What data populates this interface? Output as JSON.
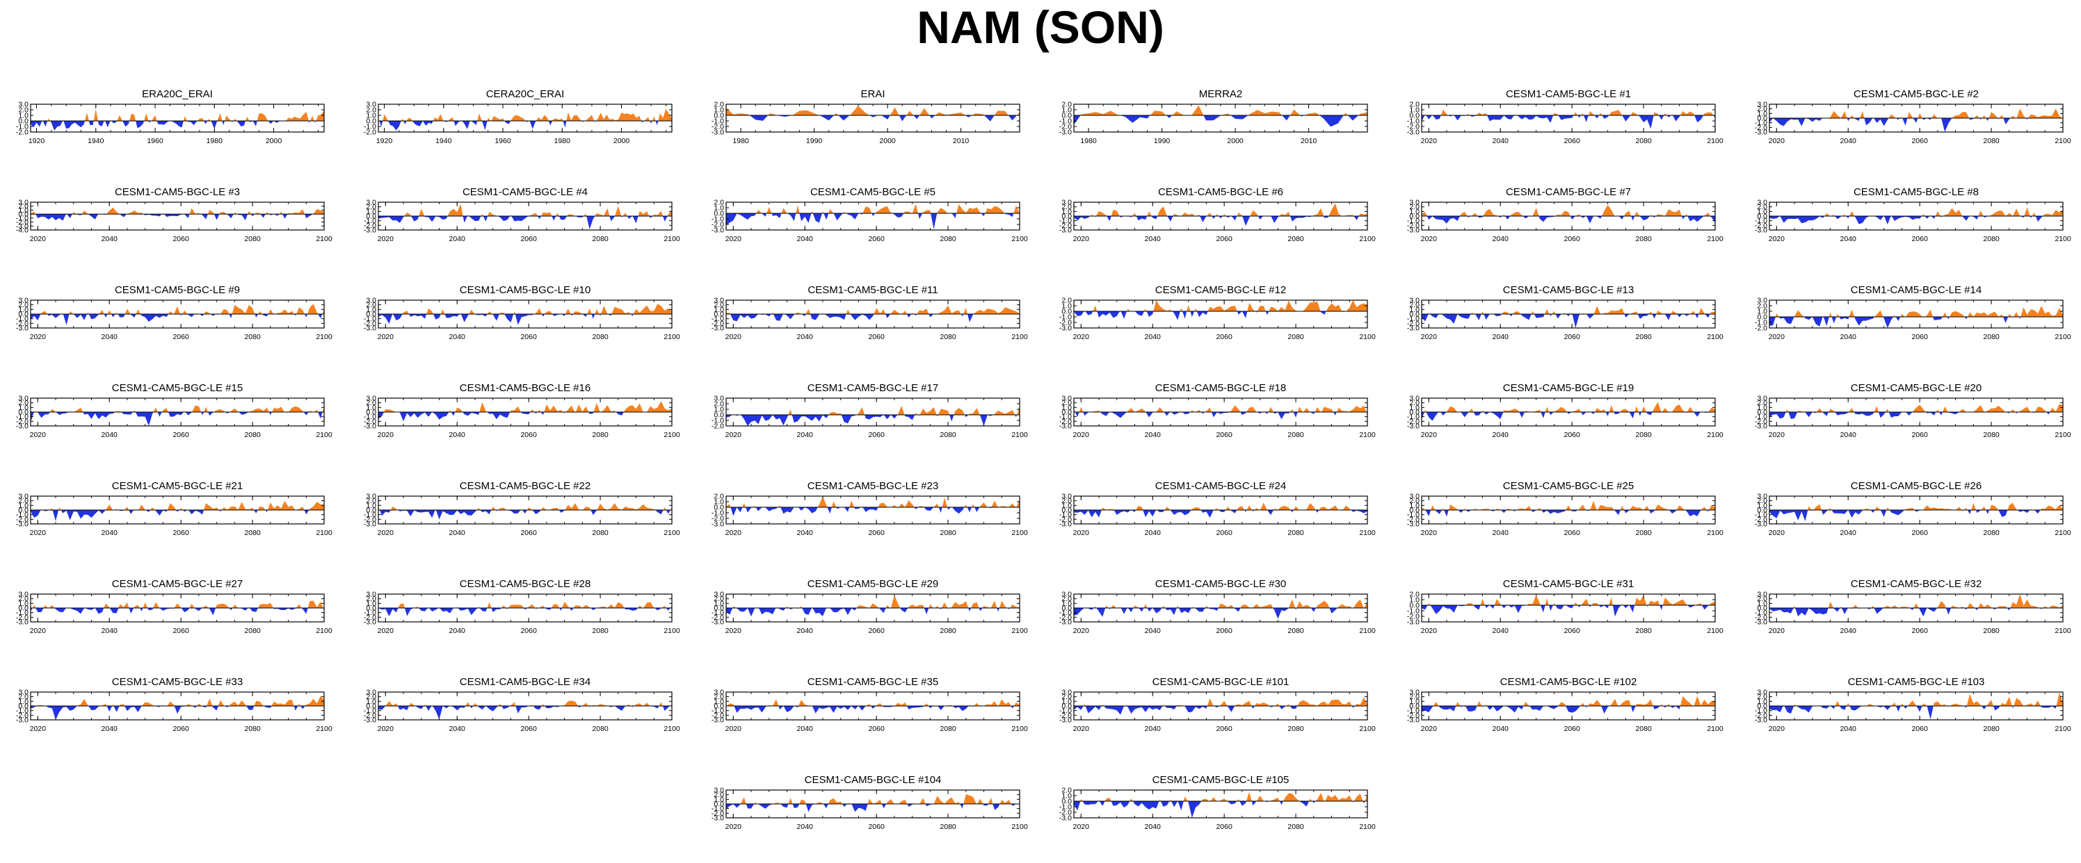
{
  "figure": {
    "title": "NAM (SON)"
  },
  "colors": {
    "positive": "#f5821f",
    "negative": "#2233e0",
    "axis": "#000000"
  },
  "chart_data": [
    {
      "type": "area",
      "title": "ERA20C_ERAI",
      "x_range": [
        1918,
        2017
      ],
      "ylim": [
        -2.0,
        3.0
      ],
      "yticks": [
        "3.0",
        "2.0",
        "1.0",
        "0.0",
        "-1.0",
        "-2.0"
      ],
      "xticks": [
        1920,
        1940,
        1960,
        1980,
        2000
      ],
      "seed": 11,
      "trend": 0.6
    },
    {
      "type": "area",
      "title": "CERA20C_ERAI",
      "x_range": [
        1918,
        2017
      ],
      "ylim": [
        -2.0,
        3.0
      ],
      "yticks": [
        "3.0",
        "2.0",
        "1.0",
        "0.0",
        "-1.0",
        "-2.0"
      ],
      "xticks": [
        1920,
        1940,
        1960,
        1980,
        2000
      ],
      "seed": 23,
      "trend": 0.5
    },
    {
      "type": "area",
      "title": "ERAI",
      "x_range": [
        1978,
        2018
      ],
      "ylim": [
        -3.0,
        2.0
      ],
      "yticks": [
        "2.0",
        "1.0",
        "0.0",
        "-1.0",
        "-2.0",
        "-3.0"
      ],
      "xticks": [
        1980,
        1990,
        2000,
        2010
      ],
      "seed": 37,
      "trend": 0.0
    },
    {
      "type": "area",
      "title": "MERRA2",
      "x_range": [
        1978,
        2018
      ],
      "ylim": [
        -3.0,
        2.0
      ],
      "yticks": [
        "2.0",
        "1.0",
        "0.0",
        "-1.0",
        "-2.0",
        "-3.0"
      ],
      "xticks": [
        1980,
        1990,
        2000,
        2010
      ],
      "seed": 41,
      "trend": 0.0
    },
    {
      "type": "area",
      "title": "CESM1-CAM5-BGC-LE #1",
      "x_range": [
        2018,
        2100
      ],
      "ylim": [
        -3.0,
        2.0
      ],
      "yticks": [
        "2.0",
        "1.0",
        "0.0",
        "-1.0",
        "-2.0",
        "-3.0"
      ],
      "xticks": [
        2020,
        2040,
        2060,
        2080,
        2100
      ],
      "seed": 101,
      "trend": 0.0
    },
    {
      "type": "area",
      "title": "CESM1-CAM5-BGC-LE #2",
      "x_range": [
        2018,
        2100
      ],
      "ylim": [
        -3.0,
        3.0
      ],
      "yticks": [
        "3.0",
        "2.0",
        "1.0",
        "0.0",
        "-1.0",
        "-2.0",
        "-3.0"
      ],
      "xticks": [
        2020,
        2040,
        2060,
        2080,
        2100
      ],
      "seed": 102,
      "trend": 0.6
    },
    {
      "type": "area",
      "title": "CESM1-CAM5-BGC-LE #3",
      "x_range": [
        2018,
        2100
      ],
      "ylim": [
        -4.0,
        3.0
      ],
      "yticks": [
        "3.0",
        "2.0",
        "1.0",
        "0.0",
        "-1.0",
        "-2.0",
        "-3.0",
        "-4.0"
      ],
      "xticks": [
        2020,
        2040,
        2060,
        2080,
        2100
      ],
      "seed": 103,
      "trend": 0.3
    },
    {
      "type": "area",
      "title": "CESM1-CAM5-BGC-LE #4",
      "x_range": [
        2018,
        2100
      ],
      "ylim": [
        -3.0,
        3.0
      ],
      "yticks": [
        "3.0",
        "2.0",
        "1.0",
        "0.0",
        "-1.0",
        "-2.0",
        "-3.0"
      ],
      "xticks": [
        2020,
        2040,
        2060,
        2080,
        2100
      ],
      "seed": 104,
      "trend": 0.3
    },
    {
      "type": "area",
      "title": "CESM1-CAM5-BGC-LE #5",
      "x_range": [
        2018,
        2100
      ],
      "ylim": [
        -3.0,
        2.0
      ],
      "yticks": [
        "2.0",
        "1.0",
        "0.0",
        "-1.0",
        "-2.0",
        "-3.0"
      ],
      "xticks": [
        2020,
        2040,
        2060,
        2080,
        2100
      ],
      "seed": 105,
      "trend": 0.6
    },
    {
      "type": "area",
      "title": "CESM1-CAM5-BGC-LE #6",
      "x_range": [
        2018,
        2100
      ],
      "ylim": [
        -3.0,
        3.0
      ],
      "yticks": [
        "3.0",
        "2.0",
        "1.0",
        "0.0",
        "-1.0",
        "-2.0",
        "-3.0"
      ],
      "xticks": [
        2020,
        2040,
        2060,
        2080,
        2100
      ],
      "seed": 106,
      "trend": 0.2
    },
    {
      "type": "area",
      "title": "CESM1-CAM5-BGC-LE #7",
      "x_range": [
        2018,
        2100
      ],
      "ylim": [
        -3.0,
        3.0
      ],
      "yticks": [
        "3.0",
        "2.0",
        "1.0",
        "0.0",
        "-1.0",
        "-2.0",
        "-3.0"
      ],
      "xticks": [
        2020,
        2040,
        2060,
        2080,
        2100
      ],
      "seed": 107,
      "trend": 0.1
    },
    {
      "type": "area",
      "title": "CESM1-CAM5-BGC-LE #8",
      "x_range": [
        2018,
        2100
      ],
      "ylim": [
        -3.0,
        3.0
      ],
      "yticks": [
        "3.0",
        "2.0",
        "1.0",
        "0.0",
        "-1.0",
        "-2.0",
        "-3.0"
      ],
      "xticks": [
        2020,
        2040,
        2060,
        2080,
        2100
      ],
      "seed": 108,
      "trend": 0.5
    },
    {
      "type": "area",
      "title": "CESM1-CAM5-BGC-LE #9",
      "x_range": [
        2018,
        2100
      ],
      "ylim": [
        -3.0,
        3.0
      ],
      "yticks": [
        "3.0",
        "2.0",
        "1.0",
        "0.0",
        "-1.0",
        "-2.0",
        "-3.0"
      ],
      "xticks": [
        2020,
        2040,
        2060,
        2080,
        2100
      ],
      "seed": 109,
      "trend": 0.7
    },
    {
      "type": "area",
      "title": "CESM1-CAM5-BGC-LE #10",
      "x_range": [
        2018,
        2100
      ],
      "ylim": [
        -3.0,
        3.0
      ],
      "yticks": [
        "3.0",
        "2.0",
        "1.0",
        "0.0",
        "-1.0",
        "-2.0",
        "-3.0"
      ],
      "xticks": [
        2020,
        2040,
        2060,
        2080,
        2100
      ],
      "seed": 110,
      "trend": 0.8
    },
    {
      "type": "area",
      "title": "CESM1-CAM5-BGC-LE #11",
      "x_range": [
        2018,
        2100
      ],
      "ylim": [
        -3.0,
        3.0
      ],
      "yticks": [
        "3.0",
        "2.0",
        "1.0",
        "0.0",
        "-1.0",
        "-2.0",
        "-3.0"
      ],
      "xticks": [
        2020,
        2040,
        2060,
        2080,
        2100
      ],
      "seed": 111,
      "trend": 0.7
    },
    {
      "type": "area",
      "title": "CESM1-CAM5-BGC-LE #12",
      "x_range": [
        2018,
        2100
      ],
      "ylim": [
        -3.0,
        2.0
      ],
      "yticks": [
        "2.0",
        "1.0",
        "0.0",
        "-1.0",
        "-2.0",
        "-3.0"
      ],
      "xticks": [
        2020,
        2040,
        2060,
        2080,
        2100
      ],
      "seed": 112,
      "trend": 0.8
    },
    {
      "type": "area",
      "title": "CESM1-CAM5-BGC-LE #13",
      "x_range": [
        2018,
        2100
      ],
      "ylim": [
        -3.0,
        3.0
      ],
      "yticks": [
        "3.0",
        "2.0",
        "1.0",
        "0.0",
        "-1.0",
        "-2.0",
        "-3.0"
      ],
      "xticks": [
        2020,
        2040,
        2060,
        2080,
        2100
      ],
      "seed": 113,
      "trend": 0.5
    },
    {
      "type": "area",
      "title": "CESM1-CAM5-BGC-LE #14",
      "x_range": [
        2018,
        2100
      ],
      "ylim": [
        -2.0,
        3.0
      ],
      "yticks": [
        "3.0",
        "2.0",
        "1.0",
        "0.0",
        "-1.0",
        "-2.0"
      ],
      "xticks": [
        2020,
        2040,
        2060,
        2080,
        2100
      ],
      "seed": 114,
      "trend": 0.8
    },
    {
      "type": "area",
      "title": "CESM1-CAM5-BGC-LE #15",
      "x_range": [
        2018,
        2100
      ],
      "ylim": [
        -3.0,
        3.0
      ],
      "yticks": [
        "3.0",
        "2.0",
        "1.0",
        "0.0",
        "-1.0",
        "-2.0",
        "-3.0"
      ],
      "xticks": [
        2020,
        2040,
        2060,
        2080,
        2100
      ],
      "seed": 115,
      "trend": 0.8
    },
    {
      "type": "area",
      "title": "CESM1-CAM5-BGC-LE #16",
      "x_range": [
        2018,
        2100
      ],
      "ylim": [
        -3.0,
        3.0
      ],
      "yticks": [
        "3.0",
        "2.0",
        "1.0",
        "0.0",
        "-1.0",
        "-2.0",
        "-3.0"
      ],
      "xticks": [
        2020,
        2040,
        2060,
        2080,
        2100
      ],
      "seed": 116,
      "trend": 0.8
    },
    {
      "type": "area",
      "title": "CESM1-CAM5-BGC-LE #17",
      "x_range": [
        2018,
        2100
      ],
      "ylim": [
        -2.0,
        3.0
      ],
      "yticks": [
        "3.0",
        "2.0",
        "1.0",
        "0.0",
        "-1.0",
        "-2.0"
      ],
      "xticks": [
        2020,
        2040,
        2060,
        2080,
        2100
      ],
      "seed": 117,
      "trend": 0.6
    },
    {
      "type": "area",
      "title": "CESM1-CAM5-BGC-LE #18",
      "x_range": [
        2018,
        2100
      ],
      "ylim": [
        -3.0,
        3.0
      ],
      "yticks": [
        "3.0",
        "2.0",
        "1.0",
        "0.0",
        "-1.0",
        "-2.0",
        "-3.0"
      ],
      "xticks": [
        2020,
        2040,
        2060,
        2080,
        2100
      ],
      "seed": 118,
      "trend": 0.3
    },
    {
      "type": "area",
      "title": "CESM1-CAM5-BGC-LE #19",
      "x_range": [
        2018,
        2100
      ],
      "ylim": [
        -3.0,
        3.0
      ],
      "yticks": [
        "3.0",
        "2.0",
        "1.0",
        "0.0",
        "-1.0",
        "-2.0",
        "-3.0"
      ],
      "xticks": [
        2020,
        2040,
        2060,
        2080,
        2100
      ],
      "seed": 119,
      "trend": 0.5
    },
    {
      "type": "area",
      "title": "CESM1-CAM5-BGC-LE #20",
      "x_range": [
        2018,
        2100
      ],
      "ylim": [
        -3.0,
        3.0
      ],
      "yticks": [
        "3.0",
        "2.0",
        "1.0",
        "0.0",
        "-1.0",
        "-2.0",
        "-3.0"
      ],
      "xticks": [
        2020,
        2040,
        2060,
        2080,
        2100
      ],
      "seed": 120,
      "trend": 0.5
    },
    {
      "type": "area",
      "title": "CESM1-CAM5-BGC-LE #21",
      "x_range": [
        2018,
        2100
      ],
      "ylim": [
        -3.0,
        3.0
      ],
      "yticks": [
        "3.0",
        "2.0",
        "1.0",
        "0.0",
        "-1.0",
        "-2.0",
        "-3.0"
      ],
      "xticks": [
        2020,
        2040,
        2060,
        2080,
        2100
      ],
      "seed": 121,
      "trend": 0.6
    },
    {
      "type": "area",
      "title": "CESM1-CAM5-BGC-LE #22",
      "x_range": [
        2018,
        2100
      ],
      "ylim": [
        -3.0,
        3.0
      ],
      "yticks": [
        "3.0",
        "2.0",
        "1.0",
        "0.0",
        "-1.0",
        "-2.0",
        "-3.0"
      ],
      "xticks": [
        2020,
        2040,
        2060,
        2080,
        2100
      ],
      "seed": 122,
      "trend": 0.5
    },
    {
      "type": "area",
      "title": "CESM1-CAM5-BGC-LE #23",
      "x_range": [
        2018,
        2100
      ],
      "ylim": [
        -3.0,
        2.0
      ],
      "yticks": [
        "2.0",
        "1.0",
        "0.0",
        "-1.0",
        "-2.0",
        "-3.0"
      ],
      "xticks": [
        2020,
        2040,
        2060,
        2080,
        2100
      ],
      "seed": 123,
      "trend": 0.4
    },
    {
      "type": "area",
      "title": "CESM1-CAM5-BGC-LE #24",
      "x_range": [
        2018,
        2100
      ],
      "ylim": [
        -3.0,
        3.0
      ],
      "yticks": [
        "3.0",
        "2.0",
        "1.0",
        "0.0",
        "-1.0",
        "-2.0",
        "-3.0"
      ],
      "xticks": [
        2020,
        2040,
        2060,
        2080,
        2100
      ],
      "seed": 124,
      "trend": 0.5
    },
    {
      "type": "area",
      "title": "CESM1-CAM5-BGC-LE #25",
      "x_range": [
        2018,
        2100
      ],
      "ylim": [
        -3.0,
        3.0
      ],
      "yticks": [
        "3.0",
        "2.0",
        "1.0",
        "0.0",
        "-1.0",
        "-2.0",
        "-3.0"
      ],
      "xticks": [
        2020,
        2040,
        2060,
        2080,
        2100
      ],
      "seed": 125,
      "trend": 0.2
    },
    {
      "type": "area",
      "title": "CESM1-CAM5-BGC-LE #26",
      "x_range": [
        2018,
        2100
      ],
      "ylim": [
        -3.0,
        3.0
      ],
      "yticks": [
        "3.0",
        "2.0",
        "1.0",
        "0.0",
        "-1.0",
        "-2.0",
        "-3.0"
      ],
      "xticks": [
        2020,
        2040,
        2060,
        2080,
        2100
      ],
      "seed": 126,
      "trend": 0.5
    },
    {
      "type": "area",
      "title": "CESM1-CAM5-BGC-LE #27",
      "x_range": [
        2018,
        2100
      ],
      "ylim": [
        -3.0,
        3.0
      ],
      "yticks": [
        "3.0",
        "2.0",
        "1.0",
        "0.0",
        "-1.0",
        "-2.0",
        "-3.0"
      ],
      "xticks": [
        2020,
        2040,
        2060,
        2080,
        2100
      ],
      "seed": 127,
      "trend": 0.3
    },
    {
      "type": "area",
      "title": "CESM1-CAM5-BGC-LE #28",
      "x_range": [
        2018,
        2100
      ],
      "ylim": [
        -3.0,
        3.0
      ],
      "yticks": [
        "3.0",
        "2.0",
        "1.0",
        "0.0",
        "-1.0",
        "-2.0",
        "-3.0"
      ],
      "xticks": [
        2020,
        2040,
        2060,
        2080,
        2100
      ],
      "seed": 128,
      "trend": 0.3
    },
    {
      "type": "area",
      "title": "CESM1-CAM5-BGC-LE #29",
      "x_range": [
        2018,
        2100
      ],
      "ylim": [
        -3.0,
        3.0
      ],
      "yticks": [
        "3.0",
        "2.0",
        "1.0",
        "0.0",
        "-1.0",
        "-2.0",
        "-3.0"
      ],
      "xticks": [
        2020,
        2040,
        2060,
        2080,
        2100
      ],
      "seed": 129,
      "trend": 0.4
    },
    {
      "type": "area",
      "title": "CESM1-CAM5-BGC-LE #30",
      "x_range": [
        2018,
        2100
      ],
      "ylim": [
        -3.0,
        3.0
      ],
      "yticks": [
        "3.0",
        "2.0",
        "1.0",
        "0.0",
        "-1.0",
        "-2.0",
        "-3.0"
      ],
      "xticks": [
        2020,
        2040,
        2060,
        2080,
        2100
      ],
      "seed": 130,
      "trend": 0.7
    },
    {
      "type": "area",
      "title": "CESM1-CAM5-BGC-LE #31",
      "x_range": [
        2018,
        2100
      ],
      "ylim": [
        -3.0,
        2.0
      ],
      "yticks": [
        "2.0",
        "1.0",
        "0.0",
        "-1.0",
        "-2.0",
        "-3.0"
      ],
      "xticks": [
        2020,
        2040,
        2060,
        2080,
        2100
      ],
      "seed": 131,
      "trend": 0.4
    },
    {
      "type": "area",
      "title": "CESM1-CAM5-BGC-LE #32",
      "x_range": [
        2018,
        2100
      ],
      "ylim": [
        -3.0,
        3.0
      ],
      "yticks": [
        "3.0",
        "2.0",
        "1.0",
        "0.0",
        "-1.0",
        "-2.0",
        "-3.0"
      ],
      "xticks": [
        2020,
        2040,
        2060,
        2080,
        2100
      ],
      "seed": 132,
      "trend": 0.7
    },
    {
      "type": "area",
      "title": "CESM1-CAM5-BGC-LE #33",
      "x_range": [
        2018,
        2100
      ],
      "ylim": [
        -3.0,
        3.0
      ],
      "yticks": [
        "3.0",
        "2.0",
        "1.0",
        "0.0",
        "-1.0",
        "-2.0",
        "-3.0"
      ],
      "xticks": [
        2020,
        2040,
        2060,
        2080,
        2100
      ],
      "seed": 133,
      "trend": 0.6
    },
    {
      "type": "area",
      "title": "CESM1-CAM5-BGC-LE #34",
      "x_range": [
        2018,
        2100
      ],
      "ylim": [
        -3.0,
        3.0
      ],
      "yticks": [
        "3.0",
        "2.0",
        "1.0",
        "0.0",
        "-1.0",
        "-2.0",
        "-3.0"
      ],
      "xticks": [
        2020,
        2040,
        2060,
        2080,
        2100
      ],
      "seed": 134,
      "trend": 0.1
    },
    {
      "type": "area",
      "title": "CESM1-CAM5-BGC-LE #35",
      "x_range": [
        2018,
        2100
      ],
      "ylim": [
        -3.0,
        3.0
      ],
      "yticks": [
        "3.0",
        "2.0",
        "1.0",
        "0.0",
        "-1.0",
        "-2.0",
        "-3.0"
      ],
      "xticks": [
        2020,
        2040,
        2060,
        2080,
        2100
      ],
      "seed": 135,
      "trend": 0.4
    },
    {
      "type": "area",
      "title": "CESM1-CAM5-BGC-LE #101",
      "x_range": [
        2018,
        2100
      ],
      "ylim": [
        -3.0,
        3.0
      ],
      "yticks": [
        "3.0",
        "2.0",
        "1.0",
        "0.0",
        "-1.0",
        "-2.0",
        "-3.0"
      ],
      "xticks": [
        2020,
        2040,
        2060,
        2080,
        2100
      ],
      "seed": 201,
      "trend": 0.6
    },
    {
      "type": "area",
      "title": "CESM1-CAM5-BGC-LE #102",
      "x_range": [
        2018,
        2100
      ],
      "ylim": [
        -3.0,
        3.0
      ],
      "yticks": [
        "3.0",
        "2.0",
        "1.0",
        "0.0",
        "-1.0",
        "-2.0",
        "-3.0"
      ],
      "xticks": [
        2020,
        2040,
        2060,
        2080,
        2100
      ],
      "seed": 202,
      "trend": 0.4
    },
    {
      "type": "area",
      "title": "CESM1-CAM5-BGC-LE #103",
      "x_range": [
        2018,
        2100
      ],
      "ylim": [
        -3.0,
        3.0
      ],
      "yticks": [
        "3.0",
        "2.0",
        "1.0",
        "0.0",
        "-1.0",
        "-2.0",
        "-3.0"
      ],
      "xticks": [
        2020,
        2040,
        2060,
        2080,
        2100
      ],
      "seed": 203,
      "trend": 0.6
    },
    {
      "type": "area",
      "title": "CESM1-CAM5-BGC-LE #104",
      "x_range": [
        2018,
        2100
      ],
      "ylim": [
        -3.0,
        3.0
      ],
      "yticks": [
        "3.0",
        "2.0",
        "1.0",
        "0.0",
        "-1.0",
        "-2.0",
        "-3.0"
      ],
      "xticks": [
        2020,
        2040,
        2060,
        2080,
        2100
      ],
      "seed": 204,
      "trend": 0.5
    },
    {
      "type": "area",
      "title": "CESM1-CAM5-BGC-LE #105",
      "x_range": [
        2018,
        2100
      ],
      "ylim": [
        -3.0,
        2.0
      ],
      "yticks": [
        "2.0",
        "1.0",
        "0.0",
        "-1.0",
        "-2.0",
        "-3.0"
      ],
      "xticks": [
        2020,
        2040,
        2060,
        2080,
        2100
      ],
      "seed": 205,
      "trend": 0.7
    }
  ]
}
